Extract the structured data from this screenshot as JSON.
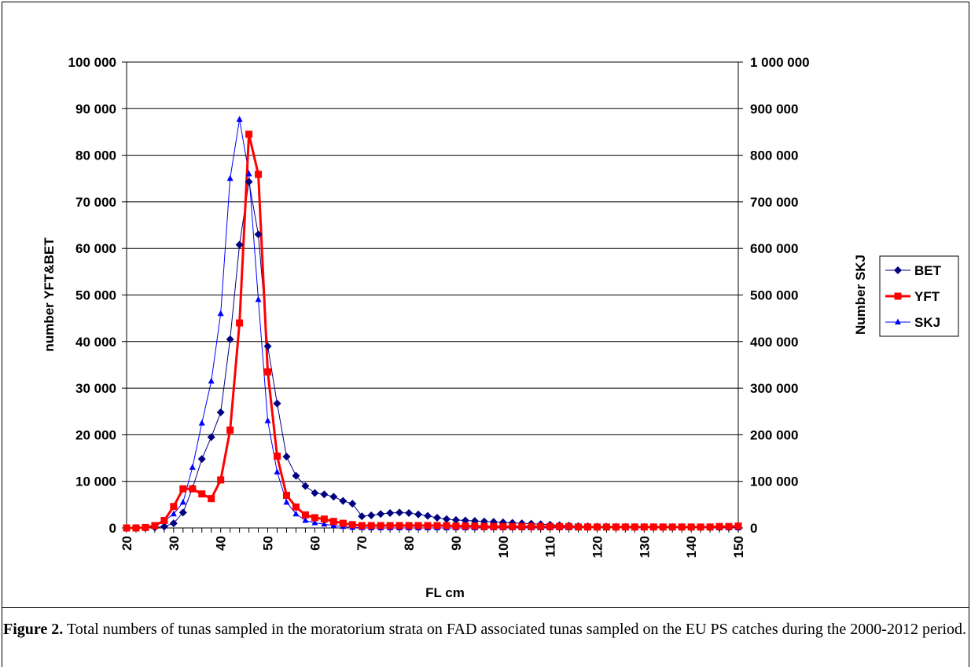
{
  "caption": {
    "label": "Figure 2.",
    "text": " Total numbers of tunas sampled in the moratorium strata on FAD associated tunas sampled on the EU PS catches during the 2000-2012 period."
  },
  "chart_data": {
    "type": "line",
    "title": "",
    "xlabel": "FL cm",
    "ylabel_left": "number YFT&BET",
    "ylabel_right": "Number SKJ",
    "xlim": [
      20,
      150
    ],
    "ylim_left": [
      0,
      100000
    ],
    "ylim_right": [
      0,
      1000000
    ],
    "x_ticks": [
      "20",
      "30",
      "40",
      "50",
      "60",
      "70",
      "80",
      "90",
      "100",
      "110",
      "120",
      "130",
      "140",
      "150"
    ],
    "y_ticks_left": [
      "0",
      "10 000",
      "20 000",
      "30 000",
      "40 000",
      "50 000",
      "60 000",
      "70 000",
      "80 000",
      "90 000",
      "100 000"
    ],
    "y_ticks_right": [
      "0",
      "100 000",
      "200 000",
      "300 000",
      "400 000",
      "500 000",
      "600 000",
      "700 000",
      "800 000",
      "900 000",
      "1 000 000"
    ],
    "grid": true,
    "legend_position": "right",
    "x": [
      20,
      22,
      24,
      26,
      28,
      30,
      32,
      34,
      36,
      38,
      40,
      42,
      44,
      46,
      48,
      50,
      52,
      54,
      56,
      58,
      60,
      62,
      64,
      66,
      68,
      70,
      72,
      74,
      76,
      78,
      80,
      82,
      84,
      86,
      88,
      90,
      92,
      94,
      96,
      98,
      100,
      102,
      104,
      106,
      108,
      110,
      112,
      114,
      116,
      118,
      120,
      122,
      124,
      126,
      128,
      130,
      132,
      134,
      136,
      138,
      140,
      142,
      144,
      146,
      148,
      150
    ],
    "series": [
      {
        "name": "BET",
        "axis": "left",
        "color": "#000080",
        "marker": "diamond",
        "values": [
          0,
          0,
          0,
          100,
          300,
          1000,
          3300,
          8500,
          14800,
          19500,
          24800,
          40500,
          60800,
          74300,
          63000,
          39000,
          26700,
          15300,
          11200,
          9000,
          7500,
          7200,
          6700,
          5800,
          5200,
          2500,
          2700,
          3000,
          3200,
          3300,
          3200,
          2900,
          2600,
          2200,
          1900,
          1700,
          1600,
          1500,
          1400,
          1300,
          1200,
          1100,
          1000,
          900,
          800,
          700,
          600,
          500,
          400,
          350,
          300,
          280,
          260,
          240,
          220,
          200,
          180,
          170,
          160,
          150,
          140,
          130,
          120,
          110,
          100,
          100
        ]
      },
      {
        "name": "YFT",
        "axis": "left",
        "color": "#ff0000",
        "marker": "square",
        "values": [
          0,
          0,
          100,
          500,
          1600,
          4600,
          8400,
          8400,
          7300,
          6300,
          10300,
          21000,
          44000,
          84500,
          75900,
          33500,
          15400,
          7000,
          4500,
          2800,
          2200,
          1900,
          1400,
          1000,
          700,
          500,
          500,
          500,
          500,
          500,
          500,
          500,
          500,
          500,
          500,
          400,
          400,
          400,
          300,
          300,
          300,
          300,
          300,
          300,
          300,
          300,
          300,
          300,
          200,
          200,
          200,
          200,
          200,
          200,
          200,
          200,
          200,
          200,
          200,
          200,
          200,
          200,
          200,
          300,
          300,
          400
        ]
      },
      {
        "name": "SKJ",
        "axis": "right",
        "color": "#0000ff",
        "marker": "triangle",
        "values": [
          0,
          0,
          0,
          5000,
          15000,
          30000,
          55000,
          130000,
          225000,
          315000,
          460000,
          750000,
          877000,
          760000,
          490000,
          230000,
          120000,
          55000,
          30000,
          16000,
          11000,
          8000,
          5000,
          3000,
          1000,
          500,
          0,
          0,
          0,
          0,
          0,
          0,
          0,
          0,
          0,
          0,
          0,
          0,
          0,
          0,
          0,
          0,
          0,
          0,
          0,
          0,
          0,
          0,
          0,
          0,
          0,
          0,
          0,
          0,
          0,
          0,
          0,
          0,
          0,
          0,
          0,
          0,
          0,
          0,
          0,
          0
        ]
      }
    ]
  }
}
